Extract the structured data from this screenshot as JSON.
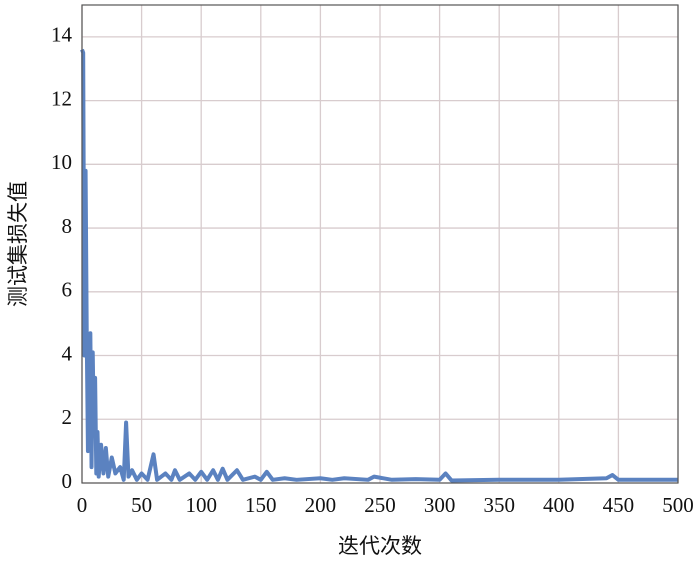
{
  "chart_data": {
    "type": "line",
    "xlabel": "迭代次数",
    "ylabel": "测试集损失值",
    "xlim": [
      0,
      500
    ],
    "ylim": [
      0,
      15
    ],
    "xticks": [
      0,
      50,
      100,
      150,
      200,
      250,
      300,
      350,
      400,
      450,
      500
    ],
    "yticks": [
      0,
      2,
      4,
      6,
      8,
      10,
      12,
      14
    ],
    "grid": true,
    "x": [
      0,
      1,
      2,
      3,
      4,
      5,
      6,
      7,
      8,
      9,
      10,
      11,
      12,
      13,
      14,
      16,
      18,
      20,
      22,
      25,
      28,
      32,
      35,
      37,
      39,
      42,
      46,
      50,
      55,
      60,
      63,
      70,
      75,
      78,
      82,
      90,
      95,
      100,
      105,
      110,
      114,
      118,
      122,
      130,
      135,
      145,
      150,
      155,
      160,
      170,
      180,
      200,
      210,
      220,
      240,
      245,
      260,
      280,
      300,
      305,
      310,
      350,
      400,
      440,
      445,
      450,
      500
    ],
    "series": [
      {
        "name": "测试集损失值",
        "color": "#5b82c0",
        "values": [
          13.6,
          13.5,
          4,
          9.8,
          4.5,
          1,
          3.5,
          4.7,
          0.5,
          4.1,
          1.5,
          3.3,
          0.3,
          1.6,
          0.2,
          1.2,
          0.3,
          1.1,
          0.2,
          0.8,
          0.3,
          0.5,
          0.1,
          1.9,
          0.2,
          0.4,
          0.1,
          0.3,
          0.1,
          0.9,
          0.1,
          0.3,
          0.1,
          0.4,
          0.1,
          0.3,
          0.1,
          0.35,
          0.1,
          0.4,
          0.1,
          0.45,
          0.1,
          0.4,
          0.1,
          0.2,
          0.1,
          0.35,
          0.1,
          0.15,
          0.1,
          0.15,
          0.1,
          0.15,
          0.1,
          0.2,
          0.1,
          0.12,
          0.1,
          0.3,
          0.08,
          0.1,
          0.1,
          0.15,
          0.25,
          0.1,
          0.1
        ]
      }
    ]
  }
}
